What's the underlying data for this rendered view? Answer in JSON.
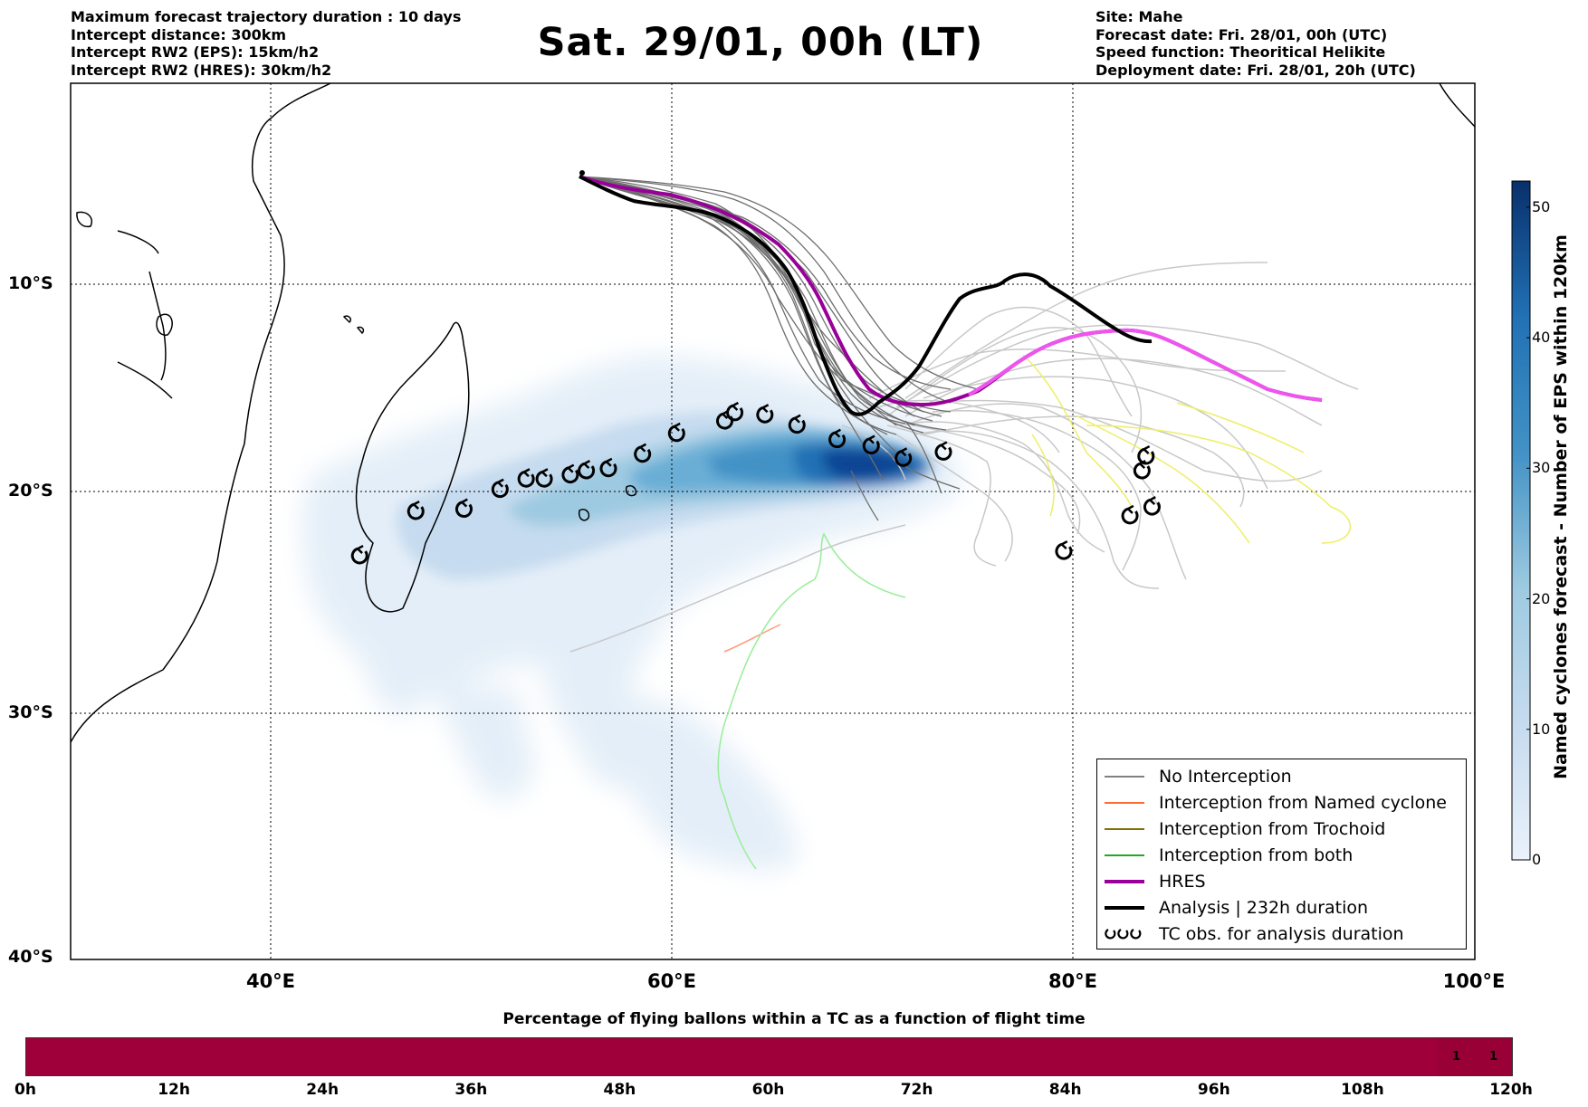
{
  "header_left": {
    "line1": "Maximum forecast trajectory duration : 10 days",
    "line2": "Intercept distance: 300km",
    "line3": "Intercept RW2 (EPS):  15km/h2",
    "line4": "Intercept RW2 (HRES): 30km/h2"
  },
  "title": "Sat. 29/01, 00h (LT)",
  "header_right": {
    "line1": "Site: Mahe",
    "line2": "Forecast date: Fri. 28/01, 00h (UTC)",
    "line3": "Speed function: Theoritical Helikite",
    "line4": "Deployment date: Fri. 28/01, 20h (UTC)"
  },
  "map": {
    "lat_labels": [
      "10°S",
      "20°S",
      "30°S",
      "40°S"
    ],
    "lon_labels": [
      "40°E",
      "60°E",
      "80°E",
      "100°E"
    ],
    "extent": {
      "lon": [
        30,
        100
      ],
      "lat": [
        -40,
        -0.5
      ]
    },
    "launch_site": {
      "lon": 55.5,
      "lat": -4.6
    },
    "colors": {
      "no_interception": "#808080",
      "named_cyclone": "#ff6a33",
      "trochoid": "#807000",
      "both": "#22a822",
      "hres": "#990099",
      "analysis": "#000000",
      "hres_after": "#ee55ee",
      "eps_after": "#c8c8c8",
      "trochoid_after": "#eeee66",
      "both_after": "#99ee99"
    },
    "tc_obs": [
      {
        "lon": 44.4,
        "lat": -22.9
      },
      {
        "lon": 47.2,
        "lat": -20.9
      },
      {
        "lon": 49.6,
        "lat": -20.8
      },
      {
        "lon": 51.4,
        "lat": -19.9
      },
      {
        "lon": 52.7,
        "lat": -19.4
      },
      {
        "lon": 53.6,
        "lat": -19.4
      },
      {
        "lon": 54.9,
        "lat": -19.2
      },
      {
        "lon": 55.7,
        "lat": -19.0
      },
      {
        "lon": 56.8,
        "lat": -18.9
      },
      {
        "lon": 58.5,
        "lat": -18.2
      },
      {
        "lon": 60.2,
        "lat": -17.2
      },
      {
        "lon": 62.6,
        "lat": -16.6
      },
      {
        "lon": 63.1,
        "lat": -16.2
      },
      {
        "lon": 64.6,
        "lat": -16.3
      },
      {
        "lon": 66.2,
        "lat": -16.8
      },
      {
        "lon": 68.2,
        "lat": -17.5
      },
      {
        "lon": 69.9,
        "lat": -17.8
      },
      {
        "lon": 71.5,
        "lat": -18.4
      },
      {
        "lon": 73.5,
        "lat": -18.1
      },
      {
        "lon": 79.5,
        "lat": -22.7
      },
      {
        "lon": 82.8,
        "lat": -21.1
      },
      {
        "lon": 83.4,
        "lat": -19.0
      },
      {
        "lon": 83.6,
        "lat": -18.3
      },
      {
        "lon": 83.9,
        "lat": -20.7
      }
    ]
  },
  "colorbar": {
    "title": "Named cyclones forecast - Number of EPS within 120km",
    "ticks": [
      "0",
      "10",
      "20",
      "30",
      "40",
      "50"
    ],
    "range": [
      0,
      52
    ],
    "color_low": "#e6f0fa",
    "color_high": "#08306b"
  },
  "legend": {
    "items": [
      {
        "label": "No Interception",
        "color": "#808080",
        "width": 1.5
      },
      {
        "label": "Interception from Named cyclone",
        "color": "#ff6a33",
        "width": 1.5
      },
      {
        "label": "Interception from Trochoid",
        "color": "#807000",
        "width": 1.5
      },
      {
        "label": "Interception from both",
        "color": "#22a822",
        "width": 1.5
      },
      {
        "label": "HRES",
        "color": "#990099",
        "width": 4
      },
      {
        "label": "Analysis | 232h duration",
        "color": "#000000",
        "width": 4
      },
      {
        "label": "TC obs. for analysis duration",
        "color": "#000000",
        "width": 0
      }
    ]
  },
  "time_bar": {
    "title": "Percentage of flying ballons within a TC as a function of flight time",
    "bar_color": "#a0003a",
    "ticks": [
      "0h",
      "12h",
      "24h",
      "36h",
      "48h",
      "60h",
      "72h",
      "84h",
      "96h",
      "108h",
      "120h"
    ],
    "cells": [
      {
        "from_h": 114,
        "to_h": 117,
        "label": "1"
      },
      {
        "from_h": 117,
        "to_h": 120,
        "label": "1"
      }
    ]
  }
}
